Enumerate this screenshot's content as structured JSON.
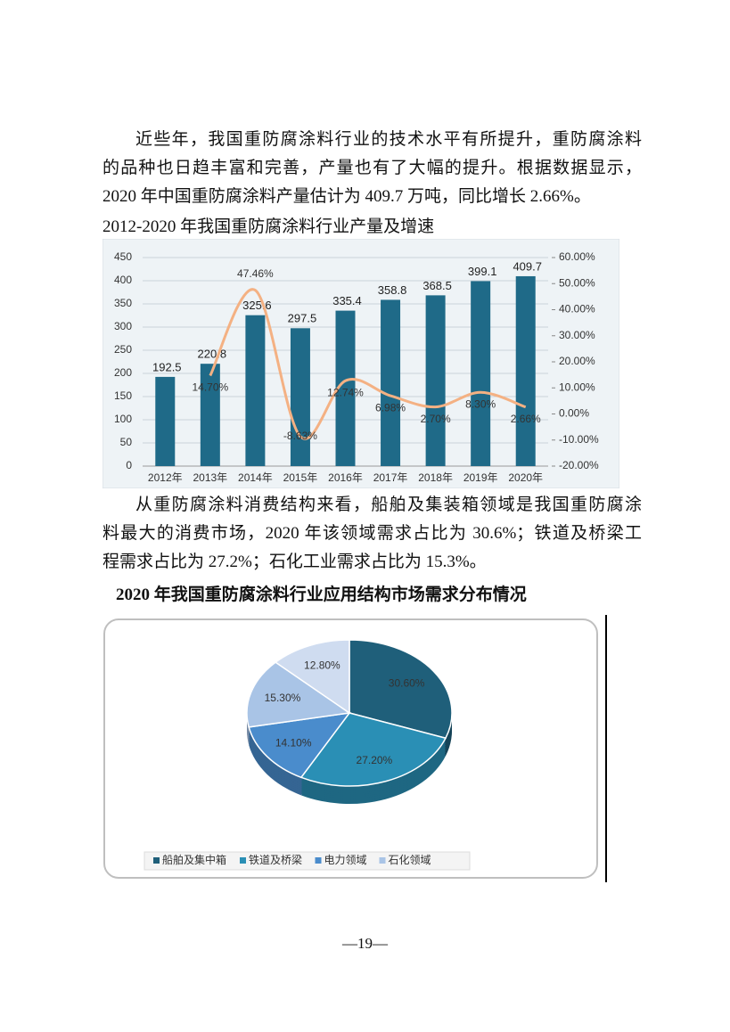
{
  "paragraphs": [
    [
      "近些年，我国重防腐涂料行业的技术水平有所提升，重防腐涂料",
      "的品种也日趋丰富和完善，产量也有了大幅的提升。根据数据显示，",
      "2020 年中国重防腐涂料产量估计为 409.7 万吨，同比增长 2.66%。"
    ],
    [
      "从重防腐涂料消费结构来看，船舶及集装箱领域是我国重防腐涂",
      "料最大的消费市场，2020 年该领域需求占比为 30.6%；铁道及桥梁工",
      "程需求占比为 27.2%；石化工业需求占比为 15.3%。"
    ]
  ],
  "chart_data": [
    {
      "type": "bar-line",
      "title": "2012-2020 年我国重防腐涂料行业产量及增速",
      "categories": [
        "2012年",
        "2013年",
        "2014年",
        "2015年",
        "2016年",
        "2017年",
        "2018年",
        "2019年",
        "2020年"
      ],
      "series": [
        {
          "type": "bar",
          "color": "#1f6a88",
          "values": [
            192.5,
            220.8,
            325.6,
            297.5,
            335.4,
            358.8,
            368.5,
            399.1,
            409.7
          ]
        },
        {
          "type": "line",
          "axis": "y2",
          "color": "#f4b183",
          "values": [
            null,
            14.7,
            47.46,
            -8.63,
            12.74,
            6.98,
            2.7,
            8.3,
            2.66
          ],
          "value_labels": [
            null,
            "14.70%",
            "47.46%",
            "-8.63%",
            "12.74%",
            "6.98%",
            "2.70%",
            "8.30%",
            "2.66%"
          ]
        }
      ],
      "ylim": [
        0,
        450
      ],
      "yticks": [
        0,
        50,
        100,
        150,
        200,
        250,
        300,
        350,
        400,
        450
      ],
      "y2lim": [
        -20,
        60
      ],
      "y2ticks": [
        {
          "value": -20,
          "label": "-20.00%"
        },
        {
          "value": -10,
          "label": "-10.00%"
        },
        {
          "value": 0,
          "label": "0.00%"
        },
        {
          "value": 10,
          "label": "10.00%"
        },
        {
          "value": 20,
          "label": "20.00%"
        },
        {
          "value": 30,
          "label": "30.00%"
        },
        {
          "value": 40,
          "label": "40.00%"
        },
        {
          "value": 50,
          "label": "50.00%"
        },
        {
          "value": 60,
          "label": "60.00%"
        }
      ],
      "grid": true
    },
    {
      "type": "pie",
      "title": "2020 年我国重防腐涂料行业应用结构市场需求分布情况",
      "categories": [
        "船舶及集中箱",
        "铁道及桥梁",
        "电力领域",
        "石化领域",
        null
      ],
      "values": [
        30.6,
        27.2,
        14.1,
        15.3,
        12.8
      ],
      "value_labels": [
        "30.60%",
        "27.20%",
        "14.10%",
        "15.30%",
        "12.80%"
      ],
      "colors": [
        "#1f5f7a",
        "#2a8fb5",
        "#4a8ccc",
        "#a9c4e6",
        "#cfdcf0"
      ],
      "legend": "bottom"
    }
  ],
  "page_number": "—19—"
}
